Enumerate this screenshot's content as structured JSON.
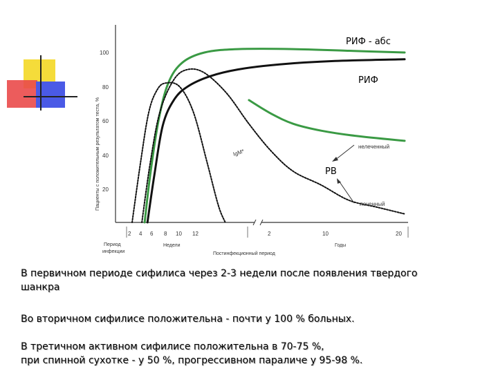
{
  "chart_data": {
    "type": "line",
    "ylabel": "Пациенты с положительным результатом теста, %",
    "y_ticks": [
      "20",
      "40",
      "60",
      "80",
      "100"
    ],
    "ylim": [
      0,
      110
    ],
    "x_ticks": [
      "2",
      "4",
      "6",
      "8",
      "10",
      "12",
      "2",
      "10",
      "20"
    ],
    "x_group_labels": [
      "Период инфекции",
      "Недели",
      "Постинфекционный период",
      "Годы"
    ],
    "series": [
      {
        "name": "РИФ - абс",
        "style": "green solid",
        "points": [
          [
            6.5,
            0
          ],
          [
            8.5,
            28
          ],
          [
            11.5,
            60
          ],
          [
            15,
            82
          ],
          [
            20,
            94
          ],
          [
            28,
            100
          ],
          [
            40,
            102
          ],
          [
            60,
            102
          ],
          [
            80,
            101
          ],
          [
            100,
            100
          ]
        ]
      },
      {
        "name": "РИФ",
        "style": "black solid",
        "points": [
          [
            7.5,
            0
          ],
          [
            10,
            28
          ],
          [
            13,
            57
          ],
          [
            17,
            72
          ],
          [
            22,
            80
          ],
          [
            30,
            86
          ],
          [
            40,
            90
          ],
          [
            55,
            93
          ],
          [
            75,
            95
          ],
          [
            100,
            96
          ]
        ]
      },
      {
        "name": "IgM*",
        "style": "black dotted",
        "points": [
          [
            2,
            0
          ],
          [
            5,
            35
          ],
          [
            8,
            65
          ],
          [
            11,
            78
          ],
          [
            14,
            82
          ],
          [
            19,
            80
          ],
          [
            24,
            65
          ],
          [
            29,
            35
          ],
          [
            33,
            10
          ],
          [
            35.5,
            0
          ]
        ]
      },
      {
        "name": "РВ",
        "style": "black dotted",
        "points": [
          [
            5.5,
            0
          ],
          [
            8.5,
            35
          ],
          [
            12,
            65
          ],
          [
            17,
            84
          ],
          [
            22,
            90
          ],
          [
            28,
            88
          ],
          [
            36,
            76
          ],
          [
            44,
            58
          ],
          [
            52,
            42
          ],
          [
            60,
            30
          ],
          [
            70,
            22
          ],
          [
            80,
            13
          ],
          [
            90,
            9
          ],
          [
            100,
            5
          ]
        ]
      },
      {
        "name": "нелеченный",
        "style": "green solid",
        "points": [
          [
            44,
            72
          ],
          [
            52,
            64
          ],
          [
            60,
            58
          ],
          [
            70,
            54
          ],
          [
            82,
            51
          ],
          [
            100,
            48
          ]
        ]
      }
    ],
    "annotations": [
      "нелеченный",
      "леченный"
    ],
    "legend_labels": [
      "РИФ - абс",
      "РИФ",
      "РВ",
      "IgM*"
    ]
  },
  "caption": {
    "p1_line1": "В первичном периоде сифилиса через 2-3 недели после появления твердого",
    "p1_line2": "шанкра",
    "p2": "Во вторичном сифилисе положительна - почти у 100 % больных.",
    "p3_line1": "В третичном активном сифилисе положительна в 70-75 %,",
    "p3_line2": "при спинной сухотке - у 50 %, прогрессивном параличе у 95-98 %."
  },
  "colors": {
    "green": "#3a9a44",
    "black": "#111111",
    "yellow": "#f5dc3a",
    "red": "#ea4a4a",
    "blue": "#4a5ae6"
  }
}
